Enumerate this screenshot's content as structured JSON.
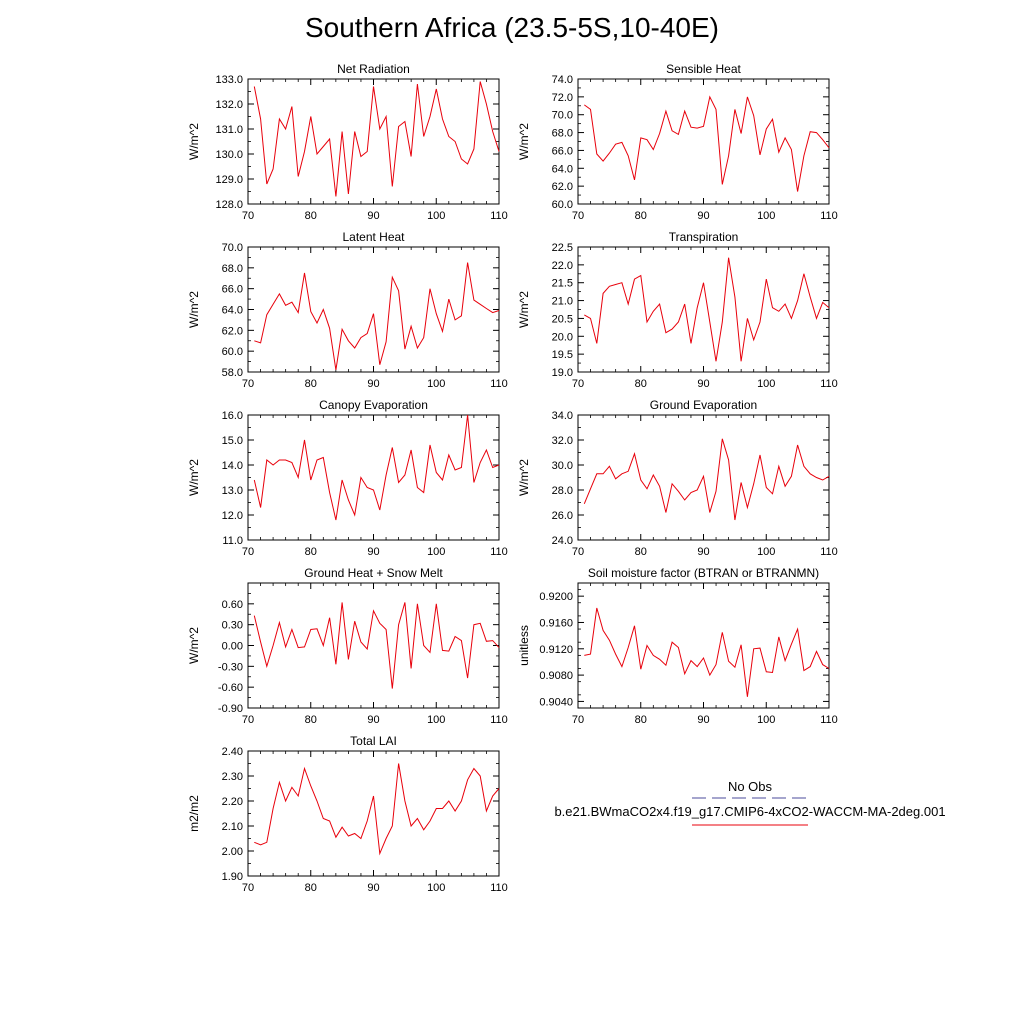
{
  "page": {
    "title": "Southern Africa (23.5-5S,10-40E)"
  },
  "legend": {
    "obs_label": "No Obs",
    "obs_color": "#4b4b9b",
    "model_label": "b.e21.BWmaCO2x4.f19_g17.CMIP6-4xCO2-WACCM-MA-2deg.001",
    "model_color": "#e8000b"
  },
  "chart_data": [
    {
      "type": "line",
      "title": "Net Radiation",
      "ylabel": "W/m^2",
      "xlim": [
        70,
        110
      ],
      "ylim": [
        128,
        133
      ],
      "xticks": [
        70,
        80,
        90,
        100,
        110
      ],
      "yticks": [
        "128.0",
        "129.0",
        "130.0",
        "131.0",
        "132.0",
        "133.0"
      ],
      "series": [
        {
          "x": [
            71,
            72,
            73,
            74,
            75,
            76,
            77,
            78,
            79,
            80,
            81,
            82,
            83,
            84,
            85,
            86,
            87,
            88,
            89,
            90,
            91,
            92,
            93,
            94,
            95,
            96,
            97,
            98,
            99,
            100,
            101,
            102,
            103,
            104,
            105,
            106,
            107,
            108,
            109,
            110
          ],
          "values": [
            132.7,
            131.4,
            128.8,
            129.4,
            131.4,
            131.0,
            131.9,
            129.1,
            130.1,
            131.5,
            130.0,
            130.3,
            130.6,
            128.3,
            130.9,
            128.4,
            130.9,
            129.9,
            130.1,
            132.7,
            131.0,
            131.5,
            128.7,
            131.1,
            131.3,
            129.9,
            132.8,
            130.7,
            131.5,
            132.6,
            131.4,
            130.7,
            130.5,
            129.8,
            129.6,
            130.2,
            132.9,
            132.0,
            130.9,
            130.1
          ]
        }
      ]
    },
    {
      "type": "line",
      "title": "Sensible Heat",
      "ylabel": "W/m^2",
      "xlim": [
        70,
        110
      ],
      "ylim": [
        60,
        74
      ],
      "xticks": [
        70,
        80,
        90,
        100,
        110
      ],
      "yticks": [
        "60.0",
        "62.0",
        "64.0",
        "66.0",
        "68.0",
        "70.0",
        "72.0",
        "74.0"
      ],
      "series": [
        {
          "x": [
            71,
            72,
            73,
            74,
            75,
            76,
            77,
            78,
            79,
            80,
            81,
            82,
            83,
            84,
            85,
            86,
            87,
            88,
            89,
            90,
            91,
            92,
            93,
            94,
            95,
            96,
            97,
            98,
            99,
            100,
            101,
            102,
            103,
            104,
            105,
            106,
            107,
            108,
            109,
            110
          ],
          "values": [
            71.1,
            70.6,
            65.6,
            64.8,
            65.7,
            66.7,
            66.9,
            65.4,
            62.7,
            67.4,
            67.2,
            66.1,
            67.9,
            70.4,
            68.2,
            67.8,
            70.4,
            68.6,
            68.5,
            68.7,
            72.0,
            70.6,
            62.2,
            65.4,
            70.6,
            67.9,
            72.0,
            69.9,
            65.5,
            68.4,
            69.5,
            65.8,
            67.4,
            66.1,
            61.4,
            65.4,
            68.1,
            68.0,
            67.2,
            66.3
          ]
        }
      ]
    },
    {
      "type": "line",
      "title": "Latent Heat",
      "ylabel": "W/m^2",
      "xlim": [
        70,
        110
      ],
      "ylim": [
        58,
        70
      ],
      "xticks": [
        70,
        80,
        90,
        100,
        110
      ],
      "yticks": [
        "58.0",
        "60.0",
        "62.0",
        "64.0",
        "66.0",
        "68.0",
        "70.0"
      ],
      "series": [
        {
          "x": [
            71,
            72,
            73,
            74,
            75,
            76,
            77,
            78,
            79,
            80,
            81,
            82,
            83,
            84,
            85,
            86,
            87,
            88,
            89,
            90,
            91,
            92,
            93,
            94,
            95,
            96,
            97,
            98,
            99,
            100,
            101,
            102,
            103,
            104,
            105,
            106,
            107,
            108,
            109,
            110
          ],
          "values": [
            61.0,
            60.8,
            63.5,
            64.5,
            65.5,
            64.4,
            64.7,
            63.7,
            67.5,
            63.8,
            62.7,
            64.0,
            62.2,
            58.2,
            62.1,
            61.0,
            60.3,
            61.3,
            61.7,
            63.6,
            58.7,
            60.9,
            67.1,
            65.8,
            60.2,
            62.4,
            60.3,
            61.3,
            66.0,
            63.6,
            61.9,
            65.0,
            63.0,
            63.4,
            68.5,
            64.9,
            64.5,
            64.1,
            63.7,
            63.9
          ]
        }
      ]
    },
    {
      "type": "line",
      "title": "Transpiration",
      "ylabel": "W/m^2",
      "xlim": [
        70,
        110
      ],
      "ylim": [
        19,
        22.5
      ],
      "xticks": [
        70,
        80,
        90,
        100,
        110
      ],
      "yticks": [
        "19.0",
        "19.5",
        "20.0",
        "20.5",
        "21.0",
        "21.5",
        "22.0",
        "22.5"
      ],
      "series": [
        {
          "x": [
            71,
            72,
            73,
            74,
            75,
            76,
            77,
            78,
            79,
            80,
            81,
            82,
            83,
            84,
            85,
            86,
            87,
            88,
            89,
            90,
            91,
            92,
            93,
            94,
            95,
            96,
            97,
            98,
            99,
            100,
            101,
            102,
            103,
            104,
            105,
            106,
            107,
            108,
            109,
            110
          ],
          "values": [
            20.6,
            20.5,
            19.8,
            21.2,
            21.4,
            21.45,
            21.5,
            20.9,
            21.6,
            21.7,
            20.4,
            20.7,
            20.9,
            20.1,
            20.2,
            20.4,
            20.9,
            19.8,
            20.8,
            21.5,
            20.4,
            19.3,
            20.4,
            22.2,
            21.1,
            19.3,
            20.5,
            19.9,
            20.4,
            21.6,
            20.8,
            20.7,
            20.9,
            20.5,
            21.0,
            21.75,
            21.1,
            20.5,
            20.95,
            20.8
          ]
        }
      ]
    },
    {
      "type": "line",
      "title": "Canopy Evaporation",
      "ylabel": "W/m^2",
      "xlim": [
        70,
        110
      ],
      "ylim": [
        11,
        16
      ],
      "xticks": [
        70,
        80,
        90,
        100,
        110
      ],
      "yticks": [
        "11.0",
        "12.0",
        "13.0",
        "14.0",
        "15.0",
        "16.0"
      ],
      "series": [
        {
          "x": [
            71,
            72,
            73,
            74,
            75,
            76,
            77,
            78,
            79,
            80,
            81,
            82,
            83,
            84,
            85,
            86,
            87,
            88,
            89,
            90,
            91,
            92,
            93,
            94,
            95,
            96,
            97,
            98,
            99,
            100,
            101,
            102,
            103,
            104,
            105,
            106,
            107,
            108,
            109,
            110
          ],
          "values": [
            13.4,
            12.3,
            14.2,
            14.0,
            14.2,
            14.2,
            14.1,
            13.5,
            15.0,
            13.4,
            14.2,
            14.3,
            12.9,
            11.8,
            13.4,
            12.6,
            12.0,
            13.5,
            13.1,
            13.0,
            12.2,
            13.6,
            14.7,
            13.3,
            13.6,
            14.6,
            13.1,
            12.9,
            14.8,
            13.7,
            13.4,
            14.4,
            13.8,
            13.9,
            16.0,
            13.3,
            14.1,
            14.6,
            13.9,
            14.0
          ]
        }
      ]
    },
    {
      "type": "line",
      "title": "Ground Evaporation",
      "ylabel": "W/m^2",
      "xlim": [
        70,
        110
      ],
      "ylim": [
        24,
        34
      ],
      "xticks": [
        70,
        80,
        90,
        100,
        110
      ],
      "yticks": [
        "24.0",
        "26.0",
        "28.0",
        "30.0",
        "32.0",
        "34.0"
      ],
      "series": [
        {
          "x": [
            71,
            72,
            73,
            74,
            75,
            76,
            77,
            78,
            79,
            80,
            81,
            82,
            83,
            84,
            85,
            86,
            87,
            88,
            89,
            90,
            91,
            92,
            93,
            94,
            95,
            96,
            97,
            98,
            99,
            100,
            101,
            102,
            103,
            104,
            105,
            106,
            107,
            108,
            109,
            110
          ],
          "values": [
            26.9,
            28.1,
            29.3,
            29.3,
            29.9,
            28.9,
            29.3,
            29.5,
            30.9,
            28.8,
            28.1,
            29.2,
            28.3,
            26.2,
            28.5,
            27.9,
            27.2,
            27.8,
            28.0,
            29.1,
            26.2,
            27.9,
            32.1,
            30.4,
            25.6,
            28.6,
            26.6,
            28.5,
            30.8,
            28.2,
            27.7,
            29.9,
            28.3,
            29.1,
            31.6,
            29.9,
            29.3,
            29.0,
            28.8,
            29.1
          ]
        }
      ]
    },
    {
      "type": "line",
      "title": "Ground Heat + Snow Melt",
      "ylabel": "W/m^2",
      "xlim": [
        70,
        110
      ],
      "ylim": [
        -0.9,
        0.9
      ],
      "xticks": [
        70,
        80,
        90,
        100,
        110
      ],
      "yticks": [
        "-0.90",
        "-0.60",
        "-0.30",
        "0.00",
        "0.30",
        "0.60"
      ],
      "series": [
        {
          "x": [
            71,
            72,
            73,
            74,
            75,
            76,
            77,
            78,
            79,
            80,
            81,
            82,
            83,
            84,
            85,
            86,
            87,
            88,
            89,
            90,
            91,
            92,
            93,
            94,
            95,
            96,
            97,
            98,
            99,
            100,
            101,
            102,
            103,
            104,
            105,
            106,
            107,
            108,
            109,
            110
          ],
          "values": [
            0.43,
            0.05,
            -0.3,
            0.0,
            0.33,
            -0.02,
            0.23,
            -0.03,
            -0.02,
            0.23,
            0.24,
            0.0,
            0.4,
            -0.27,
            0.62,
            -0.2,
            0.35,
            0.05,
            -0.05,
            0.5,
            0.32,
            0.23,
            -0.62,
            0.3,
            0.62,
            -0.33,
            0.6,
            0.0,
            -0.1,
            0.6,
            -0.07,
            -0.08,
            0.13,
            0.07,
            -0.47,
            0.3,
            0.32,
            0.06,
            0.07,
            -0.03
          ]
        }
      ]
    },
    {
      "type": "line",
      "title": "Soil moisture factor (BTRAN or BTRANMN)",
      "ylabel": "unitless",
      "xlim": [
        70,
        110
      ],
      "ylim": [
        0.903,
        0.922
      ],
      "xticks": [
        70,
        80,
        90,
        100,
        110
      ],
      "yticks": [
        "0.9040",
        "0.9080",
        "0.9120",
        "0.9160",
        "0.9200"
      ],
      "series": [
        {
          "x": [
            71,
            72,
            73,
            74,
            75,
            76,
            77,
            78,
            79,
            80,
            81,
            82,
            83,
            84,
            85,
            86,
            87,
            88,
            89,
            90,
            91,
            92,
            93,
            94,
            95,
            96,
            97,
            98,
            99,
            100,
            101,
            102,
            103,
            104,
            105,
            106,
            107,
            108,
            109,
            110
          ],
          "values": [
            0.911,
            0.9112,
            0.9182,
            0.9148,
            0.9133,
            0.9112,
            0.9093,
            0.9122,
            0.9155,
            0.9089,
            0.9125,
            0.911,
            0.9104,
            0.9095,
            0.913,
            0.9122,
            0.9082,
            0.9102,
            0.9093,
            0.9106,
            0.908,
            0.9096,
            0.9145,
            0.9101,
            0.9092,
            0.9126,
            0.9047,
            0.912,
            0.9121,
            0.9085,
            0.9084,
            0.9138,
            0.9102,
            0.9127,
            0.915,
            0.9087,
            0.9093,
            0.9116,
            0.9096,
            0.909
          ]
        }
      ]
    },
    {
      "type": "line",
      "title": "Total LAI",
      "ylabel": "m2/m2",
      "xlim": [
        70,
        110
      ],
      "ylim": [
        1.9,
        2.4
      ],
      "xticks": [
        70,
        80,
        90,
        100,
        110
      ],
      "yticks": [
        "1.90",
        "2.00",
        "2.10",
        "2.20",
        "2.30",
        "2.40"
      ],
      "series": [
        {
          "x": [
            71,
            72,
            73,
            74,
            75,
            76,
            77,
            78,
            79,
            80,
            81,
            82,
            83,
            84,
            85,
            86,
            87,
            88,
            89,
            90,
            91,
            92,
            93,
            94,
            95,
            96,
            97,
            98,
            99,
            100,
            101,
            102,
            103,
            104,
            105,
            106,
            107,
            108,
            109,
            110
          ],
          "values": [
            2.035,
            2.025,
            2.035,
            2.17,
            2.275,
            2.2,
            2.255,
            2.22,
            2.33,
            2.26,
            2.2,
            2.13,
            2.12,
            2.055,
            2.095,
            2.06,
            2.07,
            2.05,
            2.12,
            2.22,
            1.99,
            2.05,
            2.1,
            2.35,
            2.2,
            2.1,
            2.13,
            2.085,
            2.12,
            2.17,
            2.17,
            2.2,
            2.16,
            2.2,
            2.285,
            2.33,
            2.3,
            2.16,
            2.22,
            2.25
          ]
        }
      ]
    }
  ]
}
